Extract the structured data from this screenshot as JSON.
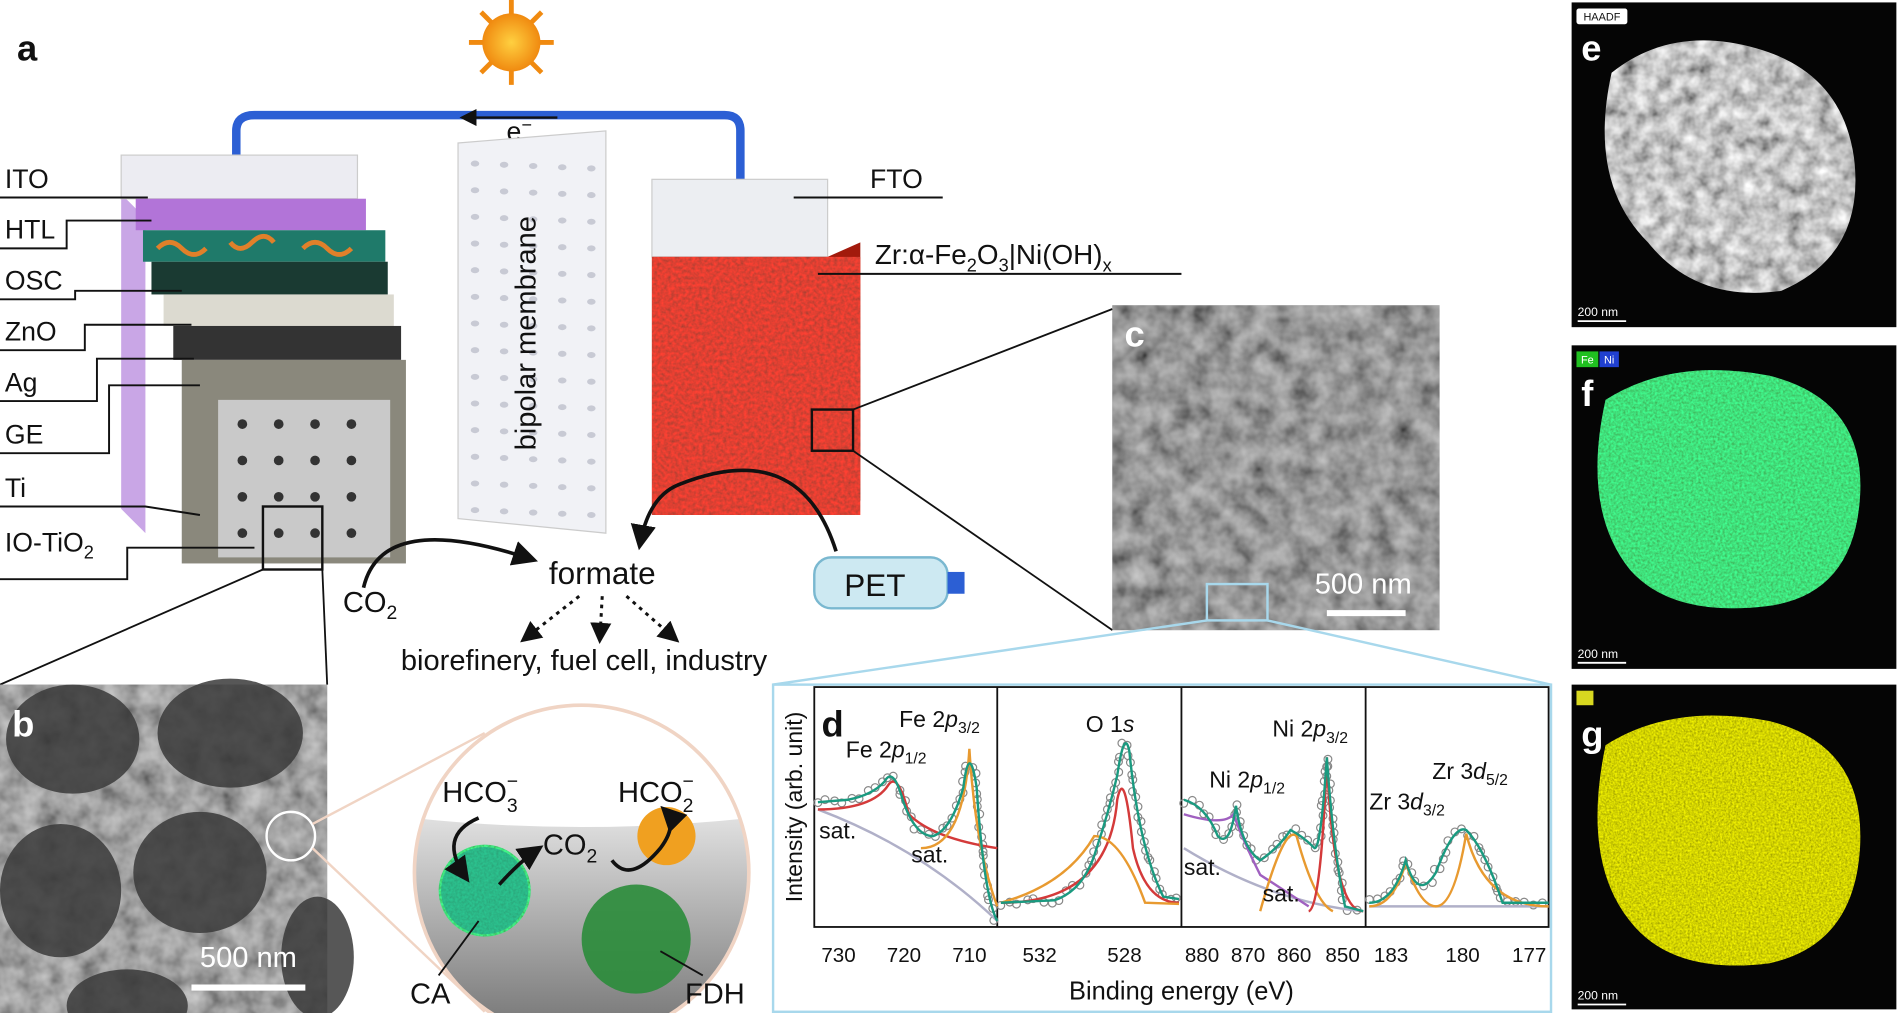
{
  "panel_a": {
    "label": "a",
    "layers": [
      "ITO",
      "HTL",
      "OSC",
      "ZnO",
      "Ag",
      "GE",
      "Ti"
    ],
    "io_tio2": {
      "text": "IO-TiO",
      "sub": "2"
    },
    "electron": {
      "text": "e",
      "sup": "−"
    },
    "membrane": "bipolar membrane",
    "fto": "FTO",
    "photoanode": [
      {
        "text": "Zr:α-Fe",
        "sub": "2"
      },
      {
        "text": "O",
        "sub": "3"
      },
      {
        "text": "|Ni(OH)",
        "sub": "x"
      }
    ],
    "co2": {
      "text": "CO",
      "sub": "2"
    },
    "product": "formate",
    "applications": "biorefinery, fuel cell, industry",
    "plastic": "PET"
  },
  "panel_b": {
    "label": "b",
    "scale": "500 nm",
    "bicarbonate": {
      "text": "HCO",
      "sub": "3",
      "sup": "−"
    },
    "formate_ion": {
      "text": "HCO",
      "sub": "2",
      "sup": "−"
    },
    "co2": {
      "text": "CO",
      "sub": "2"
    },
    "enzyme_1": "CA",
    "enzyme_2": "FDH"
  },
  "panel_c": {
    "label": "c",
    "scale": "500 nm"
  },
  "panel_d": {
    "label": "d",
    "y_label": "Intensity (arb. unit)",
    "x_label": "Binding energy (eV)",
    "subplots": [
      {
        "ticks": [
          730,
          720,
          710
        ],
        "peaks": [
          {
            "text": "Fe 2",
            "orbital": "p",
            "sub": "1/2"
          },
          {
            "text": "Fe 2",
            "orbital": "p",
            "sub": "3/2"
          }
        ],
        "satellites": [
          "sat.",
          "sat."
        ]
      },
      {
        "ticks": [
          532,
          528
        ],
        "peaks": [
          {
            "text": "O 1",
            "orbital": "s"
          }
        ]
      },
      {
        "ticks": [
          880,
          870,
          860,
          850
        ],
        "peaks": [
          {
            "text": "Ni 2",
            "orbital": "p",
            "sub": "1/2"
          },
          {
            "text": "Ni 2",
            "orbital": "p",
            "sub": "3/2"
          }
        ],
        "satellites": [
          "sat.",
          "sat."
        ]
      },
      {
        "ticks": [
          183,
          180,
          177
        ],
        "peaks": [
          {
            "text": "Zr 3",
            "orbital": "d",
            "sub": "3/2"
          },
          {
            "text": "Zr 3",
            "orbital": "d",
            "sub": "5/2"
          }
        ]
      }
    ]
  },
  "panel_e": {
    "label": "e",
    "signal": "HAADF",
    "scale": "200 nm"
  },
  "panel_f": {
    "label": "f",
    "elements": [
      "Fe",
      "Ni"
    ],
    "scale": "200 nm"
  },
  "panel_g": {
    "label": "g",
    "scale": "200 nm"
  }
}
